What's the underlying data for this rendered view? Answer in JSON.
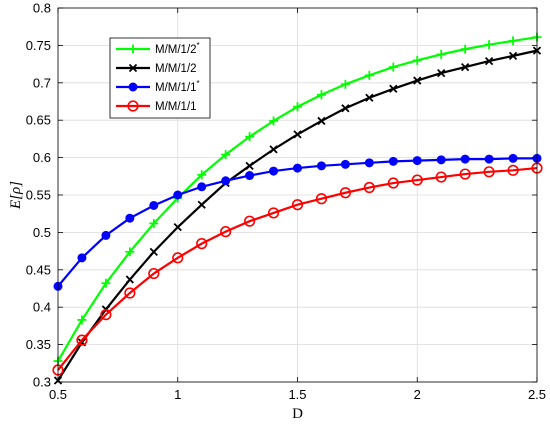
{
  "chart_data": {
    "type": "line",
    "title": "",
    "xlabel": "D",
    "ylabel": "E[ρ]",
    "xlim": [
      0.5,
      2.5
    ],
    "ylim": [
      0.3,
      0.8
    ],
    "xticks": [
      0.5,
      1,
      1.5,
      2,
      2.5
    ],
    "xtick_labels": [
      "0.5",
      "1",
      "1.5",
      "2",
      "2.5"
    ],
    "yticks": [
      0.3,
      0.35,
      0.4,
      0.45,
      0.5,
      0.55,
      0.6,
      0.65,
      0.7,
      0.75,
      0.8
    ],
    "ytick_labels": [
      "0.3",
      "0.35",
      "0.4",
      "0.45",
      "0.5",
      "0.55",
      "0.6",
      "0.65",
      "0.7",
      "0.75",
      "0.8"
    ],
    "grid": true,
    "legend_position": "top-left",
    "x": [
      0.5,
      0.6,
      0.7,
      0.8,
      0.9,
      1.0,
      1.1,
      1.2,
      1.3,
      1.4,
      1.5,
      1.6,
      1.7,
      1.8,
      1.9,
      2.0,
      2.1,
      2.2,
      2.3,
      2.4,
      2.5
    ],
    "series": [
      {
        "name": "M/M/1/2",
        "name_sup": "*",
        "color": "#00ff00",
        "marker": "plus",
        "values": [
          0.328,
          0.383,
          0.432,
          0.474,
          0.512,
          0.546,
          0.577,
          0.604,
          0.628,
          0.649,
          0.668,
          0.684,
          0.698,
          0.71,
          0.721,
          0.73,
          0.738,
          0.745,
          0.751,
          0.756,
          0.761
        ]
      },
      {
        "name": "M/M/1/2",
        "name_sup": "",
        "color": "#000000",
        "marker": "x",
        "values": [
          0.302,
          0.353,
          0.397,
          0.437,
          0.474,
          0.507,
          0.537,
          0.566,
          0.589,
          0.611,
          0.631,
          0.649,
          0.666,
          0.68,
          0.692,
          0.703,
          0.713,
          0.721,
          0.729,
          0.736,
          0.743
        ]
      },
      {
        "name": "M/M/1/1",
        "name_sup": "*",
        "color": "#0000ff",
        "marker": "dot",
        "values": [
          0.428,
          0.466,
          0.496,
          0.519,
          0.536,
          0.55,
          0.561,
          0.569,
          0.576,
          0.582,
          0.586,
          0.589,
          0.591,
          0.593,
          0.595,
          0.596,
          0.597,
          0.598,
          0.598,
          0.599,
          0.599
        ]
      },
      {
        "name": "M/M/1/1",
        "name_sup": "",
        "color": "#ff0000",
        "marker": "circle",
        "values": [
          0.316,
          0.356,
          0.39,
          0.419,
          0.445,
          0.466,
          0.485,
          0.501,
          0.515,
          0.526,
          0.537,
          0.545,
          0.553,
          0.56,
          0.566,
          0.57,
          0.574,
          0.578,
          0.581,
          0.583,
          0.586
        ]
      }
    ]
  }
}
